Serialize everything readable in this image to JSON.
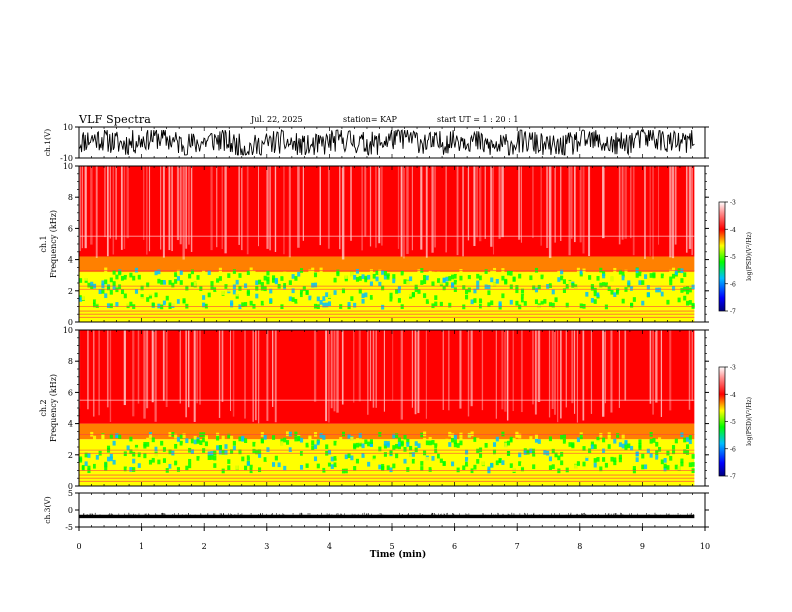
{
  "header": {
    "title": "VLF Spectra",
    "date": "Jul. 22, 2025",
    "station": "station= KAP",
    "start": "start UT =  1 : 20 : 1"
  },
  "chart_data": [
    {
      "id": "ch1-waveform",
      "type": "line",
      "ylabel": "ch.1(V)",
      "ylim": [
        -10,
        10
      ],
      "ytick_labels": [
        "-10",
        "10"
      ],
      "x_range_min": [
        0,
        9.83
      ],
      "trace": "dense noise waveform oscillating roughly between -8 and 8 V",
      "approx_envelope_V": [
        -8,
        8
      ]
    },
    {
      "id": "ch1-spectrogram",
      "type": "heatmap",
      "ylabel": "Frequency (kHz)",
      "channel_label": "ch.1",
      "ylim": [
        0,
        10
      ],
      "ytick_labels": [
        "0",
        "2",
        "4",
        "6",
        "8",
        "10"
      ],
      "x_range_min": [
        0,
        9.83
      ],
      "bands_kHz": [
        {
          "from": 0,
          "to": 0.8,
          "level": -4.6
        },
        {
          "from": 0.8,
          "to": 3.2,
          "level": -4.8
        },
        {
          "from": 3.2,
          "to": 4.2,
          "level": -4.0
        },
        {
          "from": 4.2,
          "to": 10,
          "level": -3.4
        }
      ],
      "colorbar": {
        "label": "log(PSD)(V²/Hz)",
        "range": [
          -7,
          -3
        ],
        "tick_labels": [
          "-3",
          "-4",
          "-5",
          "-6",
          "-7"
        ]
      }
    },
    {
      "id": "ch2-spectrogram",
      "type": "heatmap",
      "ylabel": "Frequency (kHz)",
      "channel_label": "ch.2",
      "ylim": [
        0,
        10
      ],
      "ytick_labels": [
        "0",
        "2",
        "4",
        "6",
        "8",
        "10"
      ],
      "x_range_min": [
        0,
        9.83
      ],
      "bands_kHz": [
        {
          "from": 0,
          "to": 0.8,
          "level": -4.5
        },
        {
          "from": 0.8,
          "to": 3.0,
          "level": -4.8
        },
        {
          "from": 3.0,
          "to": 4.0,
          "level": -4.0
        },
        {
          "from": 4.0,
          "to": 10,
          "level": -3.3
        }
      ],
      "colorbar": {
        "label": "log(PSD)(V²/Hz)",
        "range": [
          -7,
          -3
        ],
        "tick_labels": [
          "-3",
          "-4",
          "-5",
          "-6",
          "-7"
        ]
      }
    },
    {
      "id": "ch3-waveform",
      "type": "line",
      "ylabel": "ch.3(V)",
      "ylim": [
        -5,
        5
      ],
      "ytick_labels": [
        "-5",
        "0",
        "5"
      ],
      "x_range_min": [
        0,
        9.83
      ],
      "trace": "flat noisy band",
      "approx_band_V": [
        -2.4,
        -1.4
      ]
    }
  ],
  "x_axis": {
    "xlabel": "Time (min)",
    "xlim": [
      0,
      10
    ],
    "tick_labels": [
      "0",
      "1",
      "2",
      "3",
      "4",
      "5",
      "6",
      "7",
      "8",
      "9",
      "10"
    ]
  },
  "colors": {
    "colormap": [
      "#00007f",
      "#0000ff",
      "#00bfff",
      "#00ff00",
      "#ffff00",
      "#ff8000",
      "#ff0000",
      "#ffffff"
    ]
  }
}
